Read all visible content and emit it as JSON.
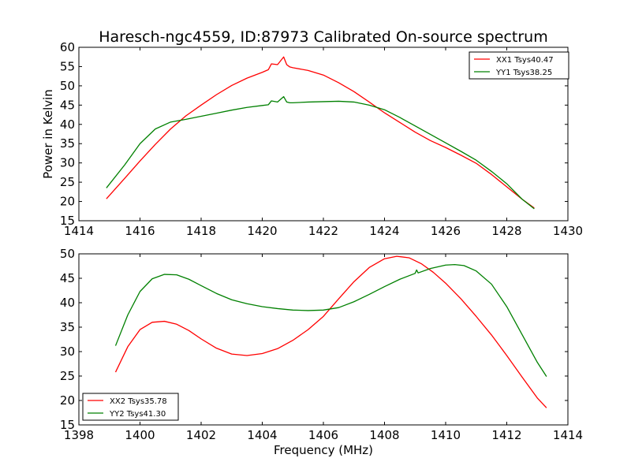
{
  "chart_data": [
    {
      "type": "line",
      "title": "Haresch-ngc4559, ID:87973 Calibrated On-source spectrum",
      "xlabel": "",
      "ylabel": "Power in Kelvin",
      "xlim": [
        1414,
        1430
      ],
      "ylim": [
        15,
        60
      ],
      "xticks": [
        1414,
        1416,
        1418,
        1420,
        1422,
        1424,
        1426,
        1428,
        1430
      ],
      "yticks": [
        15,
        20,
        25,
        30,
        35,
        40,
        45,
        50,
        55,
        60
      ],
      "legend_position": "top-right",
      "series": [
        {
          "name": "XX1 Tsys40.47",
          "color": "#ff0000",
          "x": [
            1414.9,
            1415.5,
            1416.0,
            1416.5,
            1417.0,
            1417.5,
            1418.0,
            1418.5,
            1419.0,
            1419.5,
            1420.0,
            1420.2,
            1420.3,
            1420.5,
            1420.6,
            1420.7,
            1420.8,
            1420.9,
            1421.0,
            1421.5,
            1422.0,
            1422.5,
            1423.0,
            1423.5,
            1424.0,
            1424.5,
            1425.0,
            1425.5,
            1426.0,
            1426.5,
            1427.0,
            1427.5,
            1428.0,
            1428.5,
            1428.9
          ],
          "y": [
            20.7,
            26.0,
            30.5,
            34.8,
            38.8,
            42.2,
            45.0,
            47.7,
            50.1,
            52.0,
            53.5,
            54.2,
            55.7,
            55.5,
            56.5,
            57.5,
            55.5,
            54.9,
            54.7,
            54.0,
            52.8,
            50.8,
            48.5,
            45.8,
            43.0,
            40.5,
            38.0,
            35.8,
            34.0,
            32.0,
            29.9,
            27.0,
            23.8,
            20.6,
            18.3
          ]
        },
        {
          "name": "YY1 Tsys38.25",
          "color": "#008000",
          "x": [
            1414.9,
            1415.5,
            1416.0,
            1416.5,
            1417.0,
            1417.5,
            1418.0,
            1418.5,
            1419.0,
            1419.5,
            1420.0,
            1420.2,
            1420.3,
            1420.5,
            1420.6,
            1420.7,
            1420.8,
            1420.9,
            1421.0,
            1421.5,
            1422.0,
            1422.5,
            1423.0,
            1423.5,
            1424.0,
            1424.5,
            1425.0,
            1425.5,
            1426.0,
            1426.5,
            1427.0,
            1427.5,
            1428.0,
            1428.5,
            1428.9
          ],
          "y": [
            23.5,
            29.5,
            35.0,
            38.8,
            40.6,
            41.3,
            42.1,
            42.9,
            43.7,
            44.4,
            44.9,
            45.1,
            46.1,
            45.8,
            46.5,
            47.2,
            45.8,
            45.6,
            45.6,
            45.8,
            45.9,
            46.0,
            45.8,
            45.0,
            43.8,
            41.8,
            39.6,
            37.4,
            35.2,
            33.0,
            30.7,
            27.8,
            24.6,
            20.6,
            18.1
          ]
        }
      ]
    },
    {
      "type": "line",
      "title": "",
      "xlabel": "Frequency (MHz)",
      "ylabel": "",
      "xlim": [
        1398,
        1414
      ],
      "ylim": [
        15,
        50
      ],
      "xticks": [
        1398,
        1400,
        1402,
        1404,
        1406,
        1408,
        1410,
        1412,
        1414
      ],
      "yticks": [
        15,
        20,
        25,
        30,
        35,
        40,
        45,
        50
      ],
      "legend_position": "bottom-left",
      "series": [
        {
          "name": "XX2 Tsys35.78",
          "color": "#ff0000",
          "x": [
            1399.2,
            1399.6,
            1400.0,
            1400.4,
            1400.8,
            1401.2,
            1401.6,
            1402.0,
            1402.5,
            1403.0,
            1403.5,
            1404.0,
            1404.5,
            1405.0,
            1405.5,
            1406.0,
            1406.5,
            1407.0,
            1407.5,
            1408.0,
            1408.4,
            1408.8,
            1409.2,
            1409.6,
            1410.0,
            1410.5,
            1411.0,
            1411.5,
            1412.0,
            1412.5,
            1413.0,
            1413.3
          ],
          "y": [
            25.8,
            31.0,
            34.5,
            36.0,
            36.2,
            35.6,
            34.3,
            32.6,
            30.7,
            29.5,
            29.2,
            29.6,
            30.6,
            32.3,
            34.5,
            37.2,
            40.8,
            44.3,
            47.2,
            49.0,
            49.5,
            49.2,
            48.0,
            46.2,
            44.0,
            40.8,
            37.2,
            33.4,
            29.2,
            24.8,
            20.5,
            18.5
          ]
        },
        {
          "name": "YY2 Tsys41.30",
          "color": "#008000",
          "x": [
            1399.2,
            1399.6,
            1400.0,
            1400.4,
            1400.8,
            1401.2,
            1401.6,
            1402.0,
            1402.5,
            1403.0,
            1403.5,
            1404.0,
            1404.5,
            1405.0,
            1405.5,
            1406.0,
            1406.5,
            1407.0,
            1407.5,
            1408.0,
            1408.5,
            1409.0,
            1409.05,
            1409.1,
            1409.5,
            1410.0,
            1410.3,
            1410.6,
            1411.0,
            1411.5,
            1412.0,
            1412.5,
            1413.0,
            1413.3
          ],
          "y": [
            31.2,
            37.5,
            42.3,
            44.9,
            45.8,
            45.7,
            44.8,
            43.5,
            41.9,
            40.6,
            39.8,
            39.2,
            38.8,
            38.5,
            38.4,
            38.5,
            39.0,
            40.2,
            41.7,
            43.3,
            44.8,
            46.0,
            46.7,
            46.1,
            47.0,
            47.7,
            47.8,
            47.6,
            46.5,
            43.8,
            39.2,
            33.5,
            27.8,
            24.9
          ]
        }
      ]
    }
  ]
}
